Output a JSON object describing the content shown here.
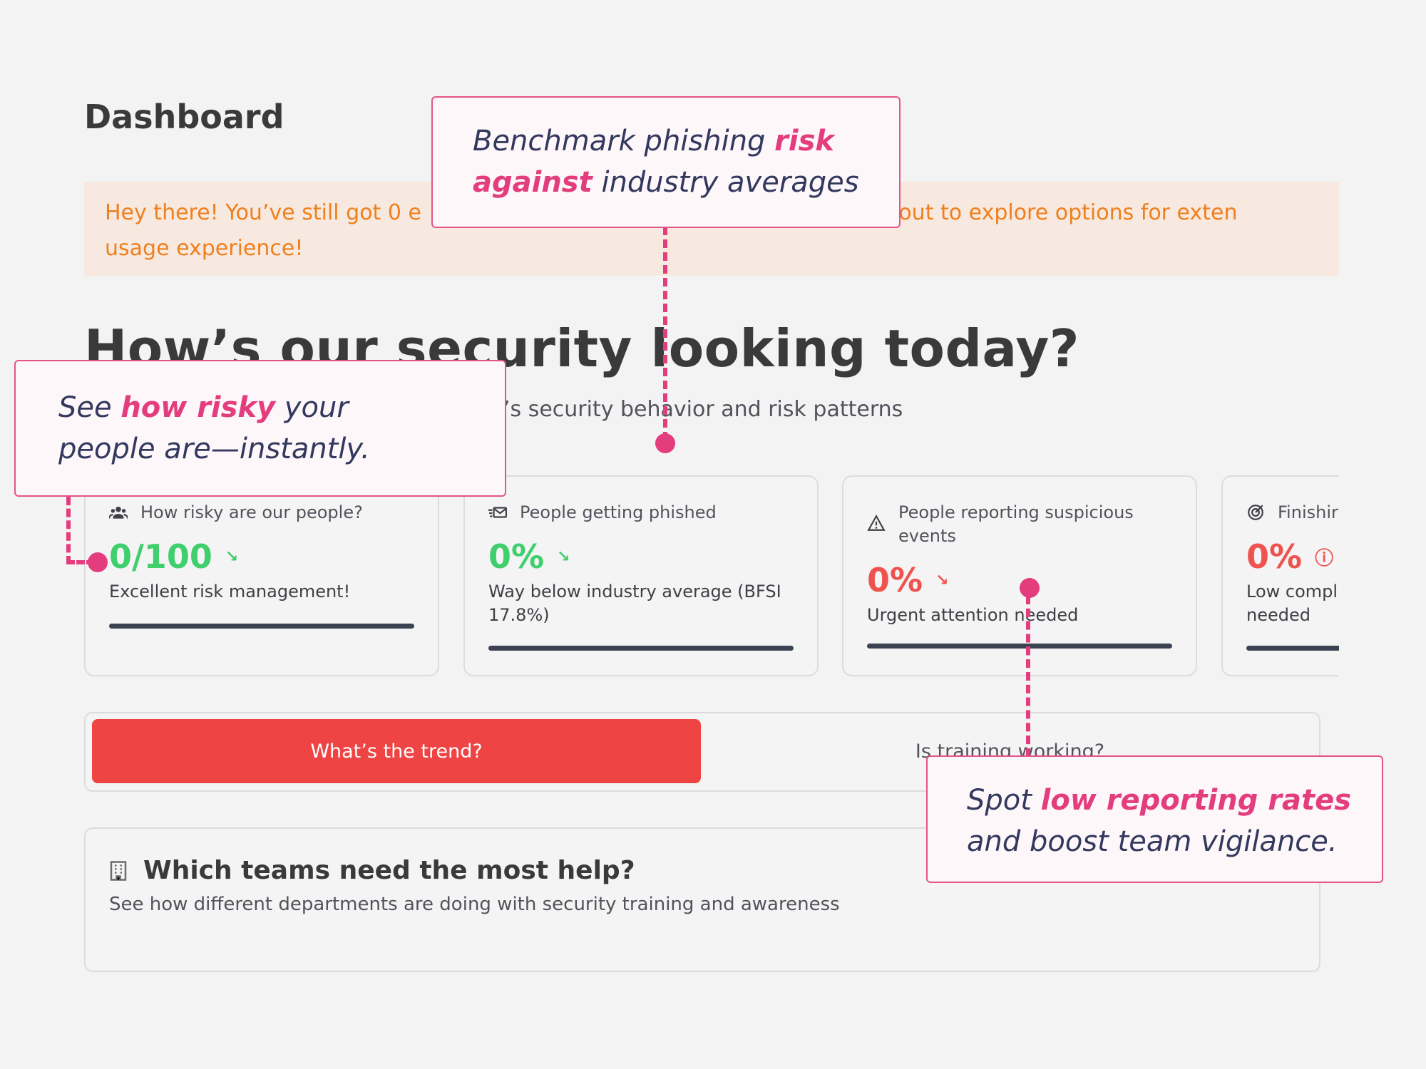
{
  "page": {
    "title": "Dashboard"
  },
  "banner": {
    "line1": "Hey there! You’ve still got 0 e",
    "line1_end": "Reach out to explore options for exten",
    "line2": "usage experience!"
  },
  "hero": {
    "title": "How’s our security looking today?",
    "subtitle_partial": "’s security behavior and risk patterns"
  },
  "cards": [
    {
      "icon": "people-icon",
      "label": "How risky are our people?",
      "value": "0/100",
      "value_color": "#3fcf6d",
      "trend_icon": "trend-down-icon",
      "description": "Excellent risk management!"
    },
    {
      "icon": "mail-icon",
      "label": "People getting phished",
      "value": "0%",
      "value_color": "#3fcf6d",
      "trend_icon": "trend-down-icon",
      "description": "Way below industry average (BFSI 17.8%)"
    },
    {
      "icon": "warning-icon",
      "label": "People reporting suspicious events",
      "value": "0%",
      "value_color": "#ef5350",
      "trend_icon": "trend-down-icon",
      "description": "Urgent attention needed"
    },
    {
      "icon": "target-icon",
      "label": "Finishir",
      "value": "0%",
      "value_color": "#ef5350",
      "trend_icon": "alert-circle-icon",
      "description": "Low compl needed"
    }
  ],
  "tabs": {
    "active": "What’s the trend?",
    "other": "Is training working?"
  },
  "teams": {
    "title": "Which teams need the most help?",
    "subtitle": "See how different departments are doing with security training and awareness"
  },
  "callouts": {
    "benchmark": {
      "pre": "Benchmark phishing ",
      "em1": "risk",
      "em2": "against",
      "post": " industry averages"
    },
    "risky": {
      "pre": "See ",
      "em": "how risky",
      "post1": " your",
      "post2": "people are—instantly."
    },
    "reporting": {
      "pre": "Spot ",
      "em": "low reporting rates",
      "post": "and boost team vigilance."
    }
  },
  "colors": {
    "accent": "#e33d7e",
    "danger": "#ef4444",
    "success": "#3fcf6d",
    "banner_text": "#f07f1d"
  }
}
